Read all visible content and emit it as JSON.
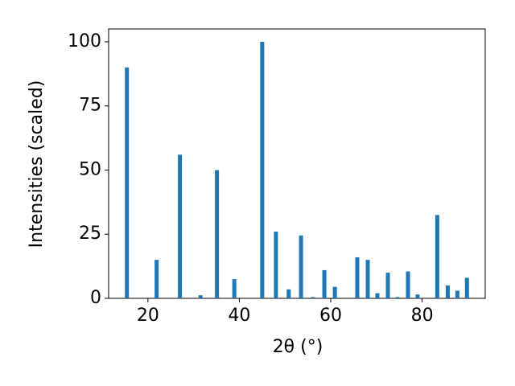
{
  "chart_data": {
    "type": "bar",
    "xlabel": "2θ (°)",
    "ylabel": "Intensities (scaled)",
    "x": [
      15.4,
      21.9,
      27.0,
      31.5,
      35.1,
      38.9,
      45.0,
      48.0,
      50.8,
      53.5,
      56.1,
      58.6,
      60.9,
      65.8,
      68.1,
      70.2,
      72.5,
      74.6,
      76.9,
      79.0,
      83.3,
      85.6,
      87.7,
      89.8
    ],
    "values": [
      90,
      15,
      56,
      1.2,
      50,
      7.5,
      100,
      26,
      3.5,
      24.5,
      0.5,
      11,
      4.5,
      16,
      15,
      2,
      10,
      0.5,
      10.5,
      1.5,
      32.5,
      5,
      3,
      8
    ],
    "color": "#1f77b4",
    "xlim": [
      11.4,
      93.8
    ],
    "xticks": [
      20,
      40,
      60,
      80
    ],
    "ylim": [
      0,
      105
    ],
    "yticks": [
      0,
      25,
      50,
      75,
      100
    ]
  }
}
